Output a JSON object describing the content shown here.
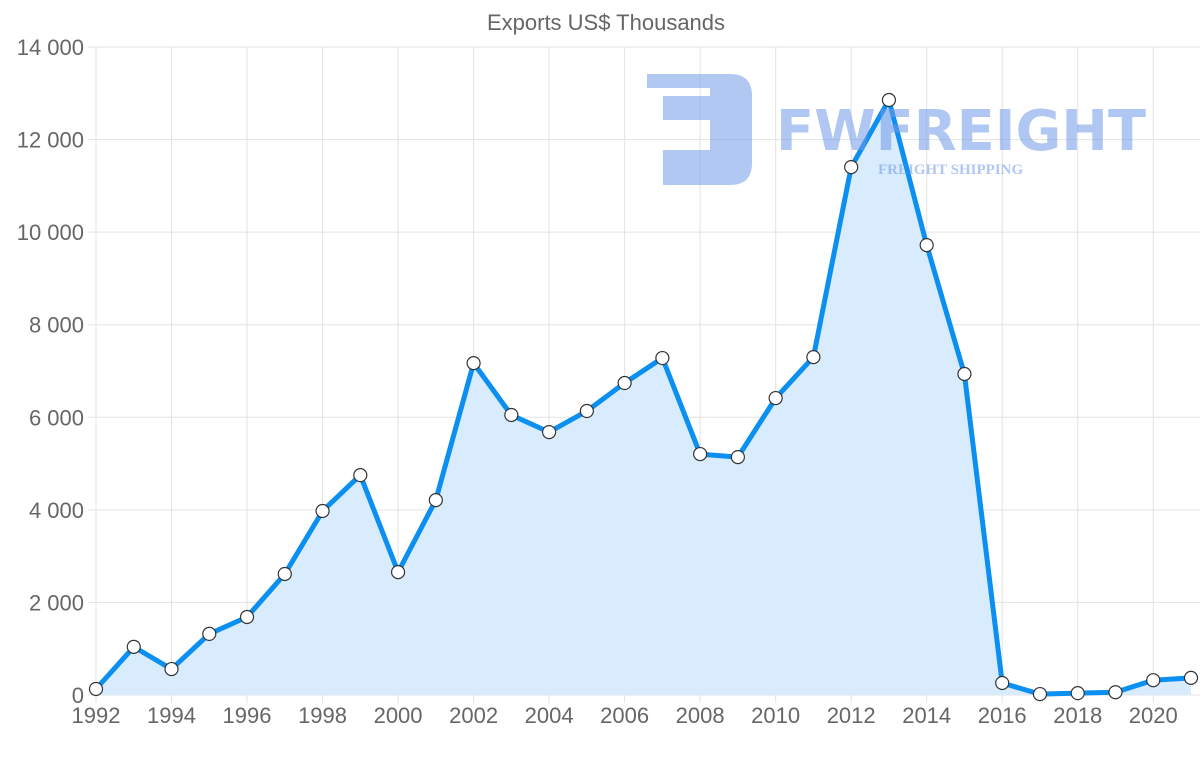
{
  "chart_data": {
    "type": "area",
    "title": "Exports US$ Thousands",
    "xlabel": "",
    "ylabel": "",
    "ylim": [
      0,
      14000
    ],
    "xlim": [
      1992,
      2021
    ],
    "grid": true,
    "y_ticks": [
      "0",
      "2 000",
      "4 000",
      "6 000",
      "8 000",
      "10 000",
      "12 000",
      "14 000"
    ],
    "x_ticks": [
      "1992",
      "1994",
      "1996",
      "1998",
      "2000",
      "2002",
      "2004",
      "2006",
      "2008",
      "2010",
      "2012",
      "2014",
      "2016",
      "2018",
      "2020"
    ],
    "series": [
      {
        "name": "Exports US$ Thousands",
        "color": "#0b8ff0",
        "fill": "#d8ecfd",
        "x": [
          1992,
          1993,
          1994,
          1995,
          1996,
          1997,
          1998,
          1999,
          2000,
          2001,
          2002,
          2003,
          2004,
          2005,
          2006,
          2007,
          2008,
          2009,
          2010,
          2011,
          2012,
          2013,
          2014,
          2015,
          2016,
          2017,
          2018,
          2019,
          2020,
          2021
        ],
        "values": [
          130,
          1040,
          560,
          1320,
          1685,
          2615,
          3975,
          4750,
          2655,
          4210,
          7170,
          6050,
          5680,
          6135,
          6740,
          7280,
          5205,
          5140,
          6415,
          7300,
          11405,
          12855,
          9720,
          6935,
          260,
          20,
          40,
          60,
          320,
          370
        ]
      }
    ]
  },
  "watermark": {
    "brand": "FWFREIGHT",
    "tagline": "FREIGHT SHIPPING",
    "color": "#6f9ae8"
  }
}
